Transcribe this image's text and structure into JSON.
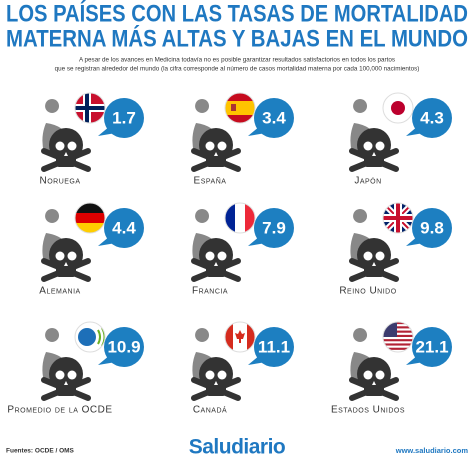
{
  "header": {
    "title_line1": "LOS PAÍSES CON LAS TASAS DE MORTALIDAD",
    "title_line2": "MATERNA MÁS ALTAS Y BAJAS EN EL MUNDO",
    "subtitle_lines": [
      "A pesar de los avances en Medicina todavía no es posible garantizar resultados satisfactorios en todos los partos",
      "que se registran alrededor del mundo (la cifra corresponde al número de casos mortalidad materna por cada 100,000 nacimientos)"
    ]
  },
  "items": [
    {
      "label": "Noruega",
      "value": 1.7
    },
    {
      "label": "España",
      "value": 3.4
    },
    {
      "label": "Japón",
      "value": 4.3
    },
    {
      "label": "Alemania",
      "value": 4.4
    },
    {
      "label": "Francia",
      "value": 7.9
    },
    {
      "label": "Reino Unido",
      "value": 9.8
    },
    {
      "label": "Promedio de la OCDE",
      "value": 10.9
    },
    {
      "label": "Canadá",
      "value": 11.1
    },
    {
      "label": "Estados Unidos",
      "value": 21.1
    }
  ],
  "footer": {
    "sources": "Fuentes: OCDE / OMS",
    "brand": "Saludiario",
    "url": "www.saludiario.com"
  }
}
